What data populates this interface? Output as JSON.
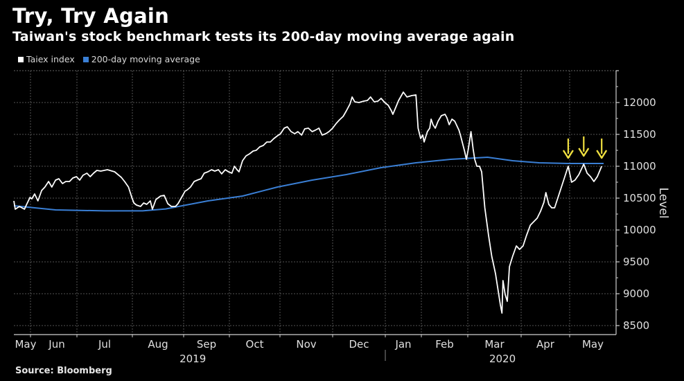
{
  "header": {
    "title": "Try, Try Again",
    "subtitle": "Taiwan's stock benchmark tests its 200-day moving average again"
  },
  "footer": {
    "source": "Source: Bloomberg"
  },
  "colors": {
    "taiex": "#ffffff",
    "ma200": "#3a7fd5",
    "arrows": "#f0e040",
    "grid": "#555555",
    "axis": "#cfcfcf"
  },
  "chart_data": {
    "type": "line",
    "title": "Try, Try Again",
    "subtitle": "Taiwan's stock benchmark tests its 200-day moving average again",
    "xlabel": "",
    "ylabel": "Level",
    "ylim": [
      8500,
      12500
    ],
    "yticks": [
      8500,
      9000,
      9500,
      10000,
      10500,
      11000,
      11500,
      12000
    ],
    "grid": true,
    "legend_position": "top-left",
    "x_units": "months since 1 May 2019",
    "xlim": [
      0.64,
      13.0
    ],
    "x_ticks": [
      {
        "label": "May",
        "x": 0.64,
        "boundary": false
      },
      {
        "label": "Jun",
        "x": 1
      },
      {
        "label": "Jul",
        "x": 2
      },
      {
        "label": "Aug",
        "x": 3
      },
      {
        "label": "Sep",
        "x": 4
      },
      {
        "label": "Oct",
        "x": 5
      },
      {
        "label": "Nov",
        "x": 6
      },
      {
        "label": "Dec",
        "x": 7
      },
      {
        "label": "Jan",
        "x": 8
      },
      {
        "label": "Feb",
        "x": 9
      },
      {
        "label": "Mar",
        "x": 10
      },
      {
        "label": "Apr",
        "x": 11
      },
      {
        "label": "May",
        "x": 12
      }
    ],
    "year_labels": [
      {
        "label": "2019",
        "x": 4.2
      },
      {
        "label": "2020",
        "x": 10.65
      }
    ],
    "series": [
      {
        "name": "Taiex index",
        "color": "#ffffff",
        "points": [
          [
            0.64,
            10457
          ],
          [
            0.67,
            10326
          ],
          [
            0.76,
            10370
          ],
          [
            0.87,
            10326
          ],
          [
            0.91,
            10391
          ],
          [
            0.99,
            10511
          ],
          [
            1.03,
            10489
          ],
          [
            1.09,
            10565
          ],
          [
            1.16,
            10457
          ],
          [
            1.24,
            10620
          ],
          [
            1.31,
            10674
          ],
          [
            1.39,
            10761
          ],
          [
            1.46,
            10674
          ],
          [
            1.54,
            10783
          ],
          [
            1.61,
            10804
          ],
          [
            1.69,
            10728
          ],
          [
            1.76,
            10761
          ],
          [
            1.84,
            10761
          ],
          [
            1.91,
            10815
          ],
          [
            1.99,
            10837
          ],
          [
            2.05,
            10783
          ],
          [
            2.11,
            10859
          ],
          [
            2.18,
            10891
          ],
          [
            2.24,
            10837
          ],
          [
            2.3,
            10891
          ],
          [
            2.36,
            10935
          ],
          [
            2.43,
            10924
          ],
          [
            2.55,
            10946
          ],
          [
            2.68,
            10913
          ],
          [
            2.8,
            10826
          ],
          [
            2.86,
            10761
          ],
          [
            2.93,
            10674
          ],
          [
            2.99,
            10511
          ],
          [
            3.03,
            10424
          ],
          [
            3.08,
            10391
          ],
          [
            3.16,
            10370
          ],
          [
            3.22,
            10424
          ],
          [
            3.28,
            10402
          ],
          [
            3.35,
            10457
          ],
          [
            3.39,
            10326
          ],
          [
            3.46,
            10478
          ],
          [
            3.55,
            10533
          ],
          [
            3.62,
            10543
          ],
          [
            3.69,
            10413
          ],
          [
            3.76,
            10370
          ],
          [
            3.84,
            10370
          ],
          [
            3.89,
            10413
          ],
          [
            3.96,
            10511
          ],
          [
            4.03,
            10609
          ],
          [
            4.08,
            10630
          ],
          [
            4.15,
            10674
          ],
          [
            4.23,
            10761
          ],
          [
            4.3,
            10783
          ],
          [
            4.38,
            10804
          ],
          [
            4.45,
            10891
          ],
          [
            4.53,
            10913
          ],
          [
            4.61,
            10946
          ],
          [
            4.68,
            10924
          ],
          [
            4.76,
            10946
          ],
          [
            4.83,
            10880
          ],
          [
            4.91,
            10946
          ],
          [
            4.98,
            10913
          ],
          [
            5.05,
            10891
          ],
          [
            5.1,
            11000
          ],
          [
            5.15,
            10946
          ],
          [
            5.19,
            10913
          ],
          [
            5.26,
            11087
          ],
          [
            5.33,
            11163
          ],
          [
            5.4,
            11196
          ],
          [
            5.47,
            11239
          ],
          [
            5.53,
            11250
          ],
          [
            5.6,
            11304
          ],
          [
            5.67,
            11326
          ],
          [
            5.74,
            11380
          ],
          [
            5.81,
            11380
          ],
          [
            5.88,
            11435
          ],
          [
            5.95,
            11478
          ],
          [
            6.01,
            11511
          ],
          [
            6.08,
            11598
          ],
          [
            6.14,
            11620
          ],
          [
            6.21,
            11543
          ],
          [
            6.28,
            11511
          ],
          [
            6.34,
            11543
          ],
          [
            6.41,
            11489
          ],
          [
            6.47,
            11587
          ],
          [
            6.54,
            11598
          ],
          [
            6.61,
            11543
          ],
          [
            6.67,
            11565
          ],
          [
            6.74,
            11598
          ],
          [
            6.8,
            11489
          ],
          [
            6.87,
            11511
          ],
          [
            6.93,
            11543
          ],
          [
            7.0,
            11598
          ],
          [
            7.07,
            11674
          ],
          [
            7.13,
            11728
          ],
          [
            7.2,
            11783
          ],
          [
            7.26,
            11870
          ],
          [
            7.33,
            11978
          ],
          [
            7.37,
            12087
          ],
          [
            7.42,
            12011
          ],
          [
            7.5,
            12000
          ],
          [
            7.59,
            12022
          ],
          [
            7.66,
            12033
          ],
          [
            7.72,
            12087
          ],
          [
            7.79,
            12011
          ],
          [
            7.86,
            12022
          ],
          [
            7.92,
            12065
          ],
          [
            7.99,
            12000
          ],
          [
            8.08,
            11957
          ],
          [
            8.17,
            11870
          ],
          [
            8.21,
            11815
          ],
          [
            8.37,
            12033
          ],
          [
            8.5,
            12163
          ],
          [
            8.6,
            12087
          ],
          [
            8.73,
            12109
          ],
          [
            8.85,
            12120
          ],
          [
            8.91,
            11598
          ],
          [
            8.98,
            11435
          ],
          [
            9.03,
            11489
          ],
          [
            9.06,
            11380
          ],
          [
            9.13,
            11543
          ],
          [
            9.18,
            11598
          ],
          [
            9.21,
            11739
          ],
          [
            9.25,
            11652
          ],
          [
            9.3,
            11598
          ],
          [
            9.36,
            11707
          ],
          [
            9.43,
            11793
          ],
          [
            9.51,
            11815
          ],
          [
            9.55,
            11761
          ],
          [
            9.6,
            11652
          ],
          [
            9.66,
            11739
          ],
          [
            9.72,
            11707
          ],
          [
            9.81,
            11565
          ],
          [
            9.85,
            11467
          ],
          [
            9.93,
            11239
          ],
          [
            9.97,
            11109
          ],
          [
            10.01,
            11272
          ],
          [
            10.06,
            11543
          ],
          [
            10.1,
            11272
          ],
          [
            10.13,
            11109
          ],
          [
            10.17,
            11000
          ],
          [
            10.22,
            11000
          ],
          [
            10.26,
            10913
          ],
          [
            10.32,
            10348
          ],
          [
            10.39,
            9913
          ],
          [
            10.45,
            9587
          ],
          [
            10.52,
            9315
          ],
          [
            10.61,
            8826
          ],
          [
            10.64,
            8696
          ],
          [
            10.66,
            9207
          ],
          [
            10.7,
            8989
          ],
          [
            10.74,
            8880
          ],
          [
            10.78,
            9424
          ],
          [
            10.84,
            9587
          ],
          [
            10.91,
            9750
          ],
          [
            10.97,
            9696
          ],
          [
            11.04,
            9750
          ],
          [
            11.11,
            9913
          ],
          [
            11.19,
            10076
          ],
          [
            11.26,
            10130
          ],
          [
            11.33,
            10185
          ],
          [
            11.4,
            10293
          ],
          [
            11.47,
            10435
          ],
          [
            11.51,
            10587
          ],
          [
            11.57,
            10402
          ],
          [
            11.63,
            10348
          ],
          [
            11.69,
            10348
          ],
          [
            11.76,
            10511
          ],
          [
            11.83,
            10674
          ],
          [
            11.9,
            10837
          ],
          [
            11.97,
            11000
          ],
          [
            12.04,
            10750
          ],
          [
            12.11,
            10783
          ],
          [
            12.19,
            10870
          ],
          [
            12.29,
            11033
          ],
          [
            12.36,
            10891
          ],
          [
            12.43,
            10837
          ],
          [
            12.5,
            10761
          ],
          [
            12.57,
            10837
          ],
          [
            12.66,
            11000
          ]
        ]
      },
      {
        "name": "200-day moving average",
        "color": "#3a7fd5",
        "points": [
          [
            0.64,
            10380
          ],
          [
            1.54,
            10315
          ],
          [
            2.5,
            10300
          ],
          [
            3.2,
            10300
          ],
          [
            3.65,
            10330
          ],
          [
            4.53,
            10457
          ],
          [
            5.26,
            10533
          ],
          [
            5.95,
            10674
          ],
          [
            6.61,
            10783
          ],
          [
            7.26,
            10870
          ],
          [
            7.92,
            10978
          ],
          [
            8.85,
            11054
          ],
          [
            9.63,
            11109
          ],
          [
            10.37,
            11141
          ],
          [
            10.84,
            11087
          ],
          [
            11.37,
            11054
          ],
          [
            11.97,
            11043
          ],
          [
            12.7,
            11043
          ]
        ]
      }
    ],
    "annotations": [
      {
        "type": "down-arrow",
        "x": 11.97,
        "value": 11000
      },
      {
        "type": "down-arrow",
        "x": 12.29,
        "value": 11033
      },
      {
        "type": "down-arrow",
        "x": 12.66,
        "value": 11000
      }
    ]
  }
}
